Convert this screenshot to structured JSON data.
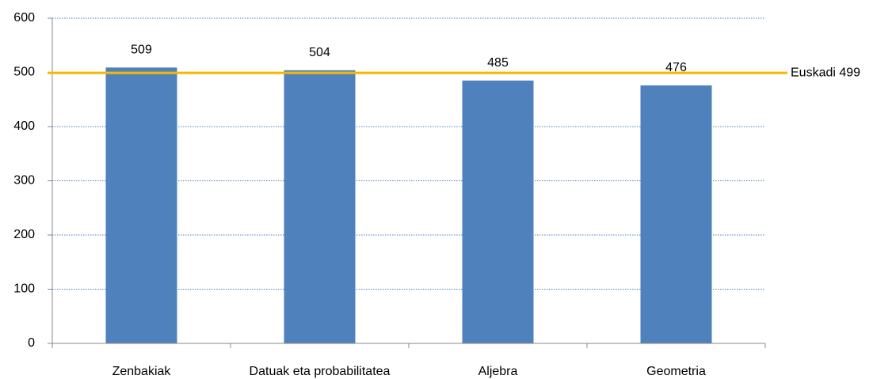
{
  "chart_data": {
    "type": "bar",
    "categories": [
      "Zenbakiak",
      "Datuak eta probabilitatea",
      "Aljebra",
      "Geometria"
    ],
    "values": [
      509,
      504,
      485,
      476
    ],
    "color": "#4f81bd",
    "ylim": [
      0,
      600
    ],
    "yticks": [
      0,
      100,
      200,
      300,
      400,
      500,
      600
    ],
    "grid": true,
    "reference_line": {
      "value": 499,
      "label": "Euskadi 499",
      "color": "#f5b800"
    }
  }
}
